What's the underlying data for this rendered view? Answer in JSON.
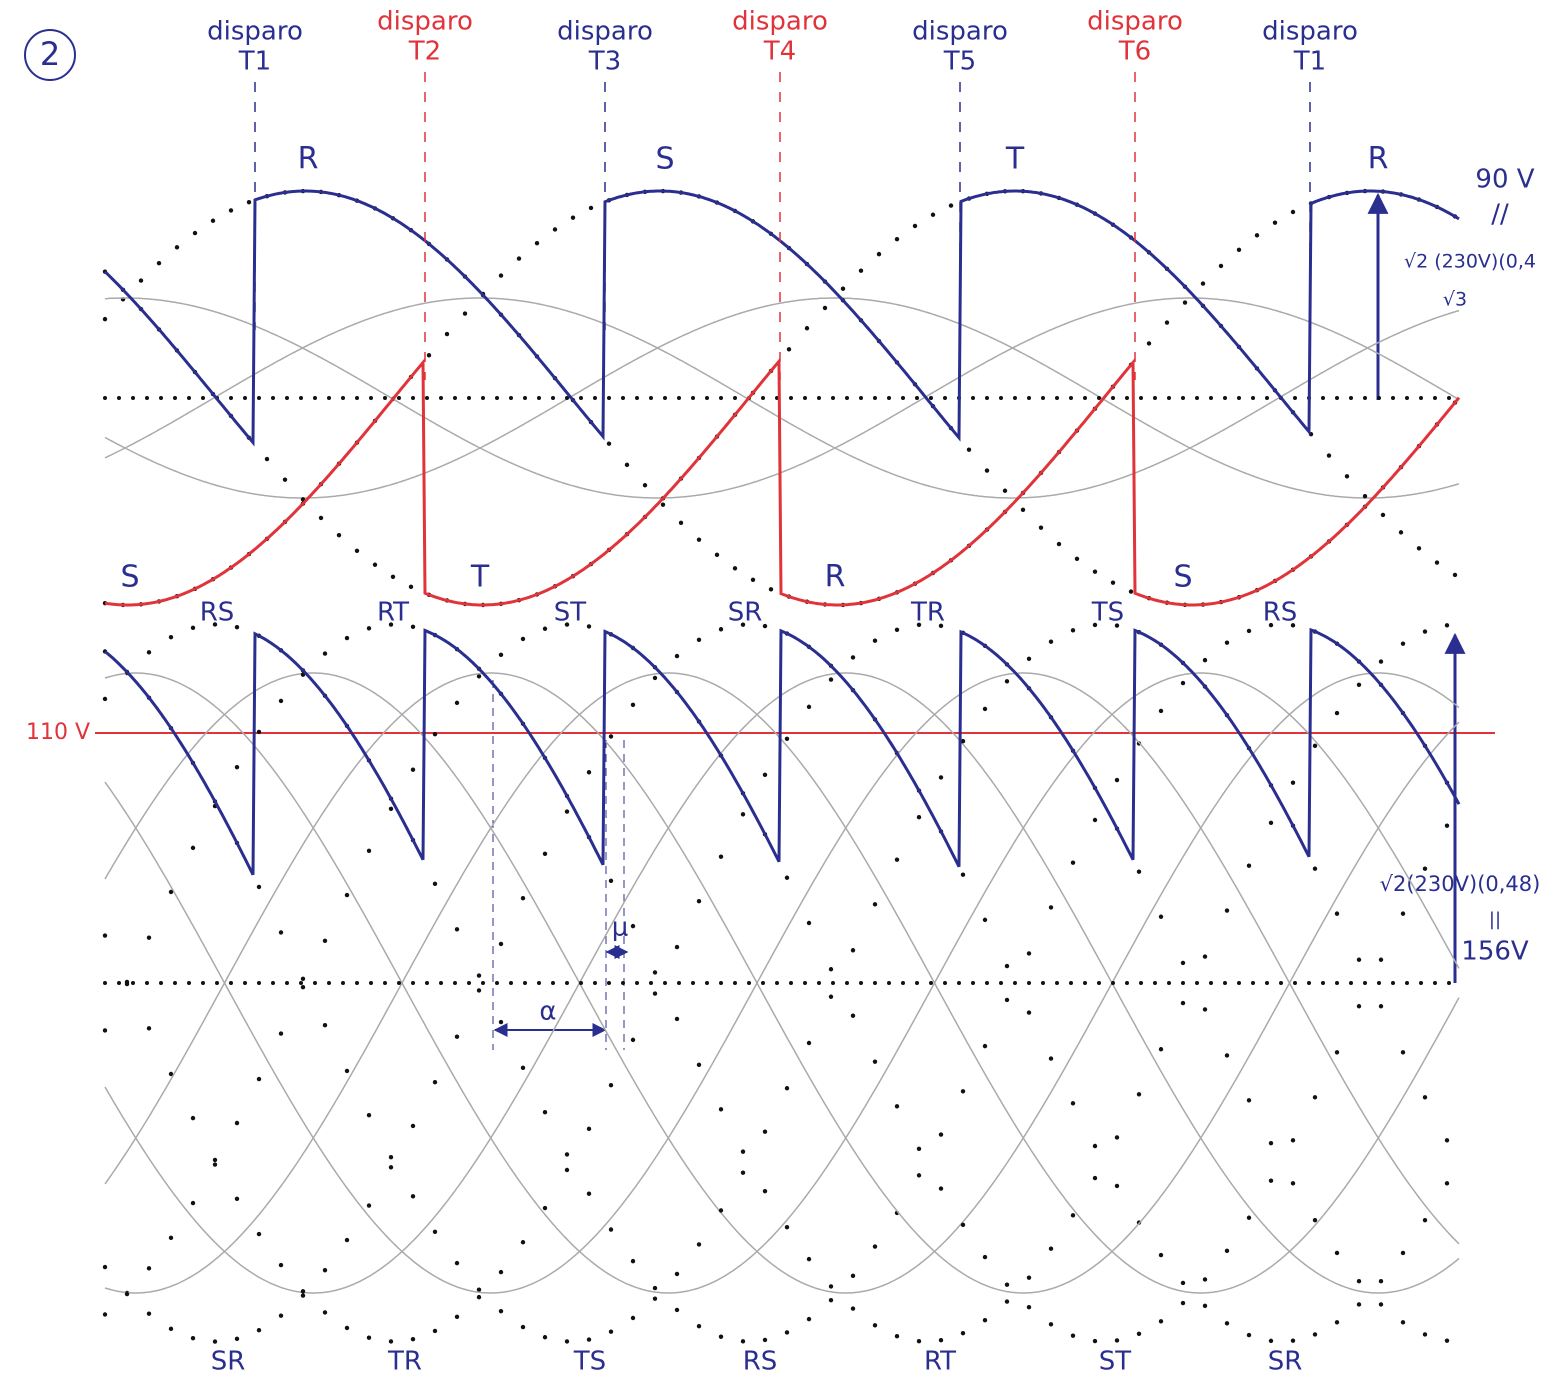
{
  "badge": "2",
  "firings": [
    {
      "label": "disparo",
      "thyristor": "T1"
    },
    {
      "label": "disparo",
      "thyristor": "T2"
    },
    {
      "label": "disparo",
      "thyristor": "T3"
    },
    {
      "label": "disparo",
      "thyristor": "T4"
    },
    {
      "label": "disparo",
      "thyristor": "T5"
    },
    {
      "label": "disparo",
      "thyristor": "T6"
    },
    {
      "label": "disparo",
      "thyristor": "T1"
    }
  ],
  "top_phase_labels": [
    "R",
    "S",
    "T",
    "R"
  ],
  "bottom_phase_labels": [
    "S",
    "T",
    "R",
    "S"
  ],
  "line_labels_top": [
    "RS",
    "RT",
    "ST",
    "SR",
    "TR",
    "TS",
    "RS"
  ],
  "line_labels_bottom": [
    "SR",
    "TR",
    "TS",
    "RS",
    "RT",
    "ST",
    "SR"
  ],
  "reference_line": "110 V",
  "annotations": {
    "top_peak": "90 V",
    "top_equals": "//",
    "top_formula": "√2 (230V)(0,4",
    "top_denominator": "√3",
    "bottom_formula": "√2(230V)(0,48)",
    "bottom_equals": "||",
    "bottom_peak": "156V",
    "alpha": "α",
    "mu": "μ"
  }
}
